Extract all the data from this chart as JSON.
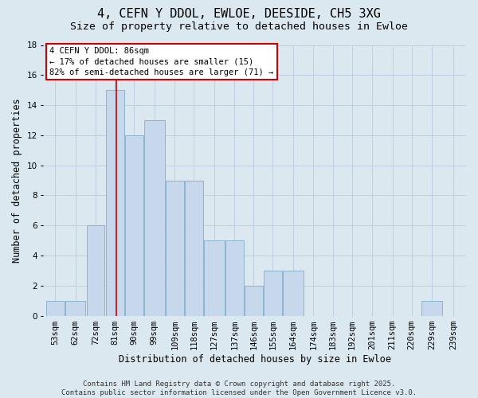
{
  "title": "4, CEFN Y DDOL, EWLOE, DEESIDE, CH5 3XG",
  "subtitle": "Size of property relative to detached houses in Ewloe",
  "xlabel": "Distribution of detached houses by size in Ewloe",
  "ylabel": "Number of detached properties",
  "bar_labels": [
    "53sqm",
    "62sqm",
    "72sqm",
    "81sqm",
    "90sqm",
    "99sqm",
    "109sqm",
    "118sqm",
    "127sqm",
    "137sqm",
    "146sqm",
    "155sqm",
    "164sqm",
    "174sqm",
    "183sqm",
    "192sqm",
    "201sqm",
    "211sqm",
    "220sqm",
    "229sqm",
    "239sqm"
  ],
  "bar_values": [
    1,
    1,
    6,
    15,
    12,
    13,
    9,
    9,
    5,
    5,
    2,
    3,
    3,
    0,
    0,
    0,
    0,
    0,
    0,
    1,
    0
  ],
  "bar_edges": [
    53,
    62,
    72,
    81,
    90,
    99,
    109,
    118,
    127,
    137,
    146,
    155,
    164,
    174,
    183,
    192,
    201,
    211,
    220,
    229,
    239,
    249
  ],
  "bar_color": "#c8d8ec",
  "bar_edgecolor": "#8ab4d0",
  "vline_x": 86,
  "vline_color": "#cc0000",
  "annotation_line1": "4 CEFN Y DDOL: 86sqm",
  "annotation_line2": "← 17% of detached houses are smaller (15)",
  "annotation_line3": "82% of semi-detached houses are larger (71) →",
  "annotation_box_color": "#ffffff",
  "annotation_border_color": "#cc0000",
  "ylim": [
    0,
    18
  ],
  "yticks": [
    0,
    2,
    4,
    6,
    8,
    10,
    12,
    14,
    16,
    18
  ],
  "grid_color": "#c0d0e0",
  "background_color": "#dce8f0",
  "footer_text": "Contains HM Land Registry data © Crown copyright and database right 2025.\nContains public sector information licensed under the Open Government Licence v3.0.",
  "title_fontsize": 11,
  "subtitle_fontsize": 9.5,
  "label_fontsize": 8.5,
  "tick_fontsize": 7.5,
  "annotation_fontsize": 7.5,
  "footer_fontsize": 6.5
}
